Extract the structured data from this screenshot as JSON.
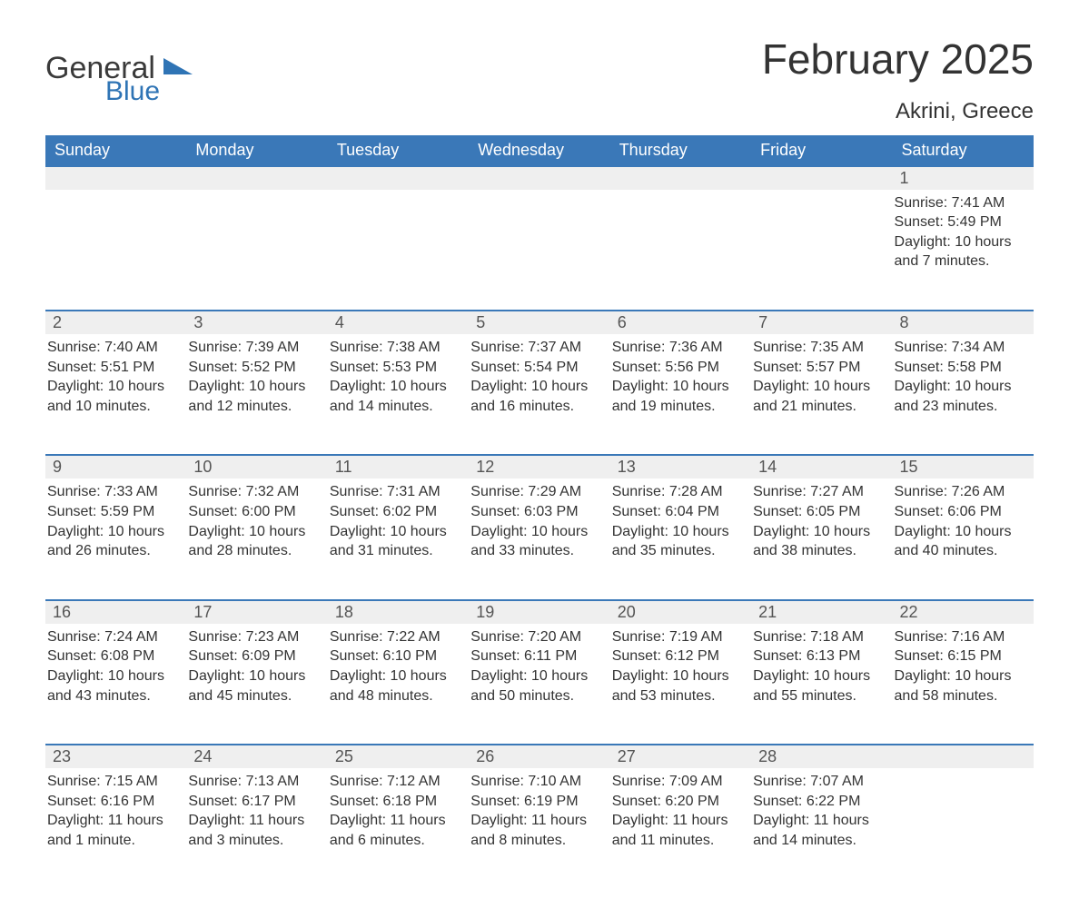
{
  "logo": {
    "text_general": "General",
    "text_blue": "Blue",
    "triangle_color": "#2f74b5"
  },
  "title": "February 2025",
  "location": "Akrini, Greece",
  "colors": {
    "header_bg": "#3a78b8",
    "header_text": "#ffffff",
    "week_border": "#3a78b8",
    "daynum_bg": "#efefef",
    "body_text": "#333333",
    "logo_text": "#3a3a3a",
    "logo_blue": "#2f74b5",
    "page_bg": "#ffffff"
  },
  "day_headers": [
    "Sunday",
    "Monday",
    "Tuesday",
    "Wednesday",
    "Thursday",
    "Friday",
    "Saturday"
  ],
  "weeks": [
    [
      null,
      null,
      null,
      null,
      null,
      null,
      {
        "n": "1",
        "sunrise": "Sunrise: 7:41 AM",
        "sunset": "Sunset: 5:49 PM",
        "daylight": "Daylight: 10 hours and 7 minutes."
      }
    ],
    [
      {
        "n": "2",
        "sunrise": "Sunrise: 7:40 AM",
        "sunset": "Sunset: 5:51 PM",
        "daylight": "Daylight: 10 hours and 10 minutes."
      },
      {
        "n": "3",
        "sunrise": "Sunrise: 7:39 AM",
        "sunset": "Sunset: 5:52 PM",
        "daylight": "Daylight: 10 hours and 12 minutes."
      },
      {
        "n": "4",
        "sunrise": "Sunrise: 7:38 AM",
        "sunset": "Sunset: 5:53 PM",
        "daylight": "Daylight: 10 hours and 14 minutes."
      },
      {
        "n": "5",
        "sunrise": "Sunrise: 7:37 AM",
        "sunset": "Sunset: 5:54 PM",
        "daylight": "Daylight: 10 hours and 16 minutes."
      },
      {
        "n": "6",
        "sunrise": "Sunrise: 7:36 AM",
        "sunset": "Sunset: 5:56 PM",
        "daylight": "Daylight: 10 hours and 19 minutes."
      },
      {
        "n": "7",
        "sunrise": "Sunrise: 7:35 AM",
        "sunset": "Sunset: 5:57 PM",
        "daylight": "Daylight: 10 hours and 21 minutes."
      },
      {
        "n": "8",
        "sunrise": "Sunrise: 7:34 AM",
        "sunset": "Sunset: 5:58 PM",
        "daylight": "Daylight: 10 hours and 23 minutes."
      }
    ],
    [
      {
        "n": "9",
        "sunrise": "Sunrise: 7:33 AM",
        "sunset": "Sunset: 5:59 PM",
        "daylight": "Daylight: 10 hours and 26 minutes."
      },
      {
        "n": "10",
        "sunrise": "Sunrise: 7:32 AM",
        "sunset": "Sunset: 6:00 PM",
        "daylight": "Daylight: 10 hours and 28 minutes."
      },
      {
        "n": "11",
        "sunrise": "Sunrise: 7:31 AM",
        "sunset": "Sunset: 6:02 PM",
        "daylight": "Daylight: 10 hours and 31 minutes."
      },
      {
        "n": "12",
        "sunrise": "Sunrise: 7:29 AM",
        "sunset": "Sunset: 6:03 PM",
        "daylight": "Daylight: 10 hours and 33 minutes."
      },
      {
        "n": "13",
        "sunrise": "Sunrise: 7:28 AM",
        "sunset": "Sunset: 6:04 PM",
        "daylight": "Daylight: 10 hours and 35 minutes."
      },
      {
        "n": "14",
        "sunrise": "Sunrise: 7:27 AM",
        "sunset": "Sunset: 6:05 PM",
        "daylight": "Daylight: 10 hours and 38 minutes."
      },
      {
        "n": "15",
        "sunrise": "Sunrise: 7:26 AM",
        "sunset": "Sunset: 6:06 PM",
        "daylight": "Daylight: 10 hours and 40 minutes."
      }
    ],
    [
      {
        "n": "16",
        "sunrise": "Sunrise: 7:24 AM",
        "sunset": "Sunset: 6:08 PM",
        "daylight": "Daylight: 10 hours and 43 minutes."
      },
      {
        "n": "17",
        "sunrise": "Sunrise: 7:23 AM",
        "sunset": "Sunset: 6:09 PM",
        "daylight": "Daylight: 10 hours and 45 minutes."
      },
      {
        "n": "18",
        "sunrise": "Sunrise: 7:22 AM",
        "sunset": "Sunset: 6:10 PM",
        "daylight": "Daylight: 10 hours and 48 minutes."
      },
      {
        "n": "19",
        "sunrise": "Sunrise: 7:20 AM",
        "sunset": "Sunset: 6:11 PM",
        "daylight": "Daylight: 10 hours and 50 minutes."
      },
      {
        "n": "20",
        "sunrise": "Sunrise: 7:19 AM",
        "sunset": "Sunset: 6:12 PM",
        "daylight": "Daylight: 10 hours and 53 minutes."
      },
      {
        "n": "21",
        "sunrise": "Sunrise: 7:18 AM",
        "sunset": "Sunset: 6:13 PM",
        "daylight": "Daylight: 10 hours and 55 minutes."
      },
      {
        "n": "22",
        "sunrise": "Sunrise: 7:16 AM",
        "sunset": "Sunset: 6:15 PM",
        "daylight": "Daylight: 10 hours and 58 minutes."
      }
    ],
    [
      {
        "n": "23",
        "sunrise": "Sunrise: 7:15 AM",
        "sunset": "Sunset: 6:16 PM",
        "daylight": "Daylight: 11 hours and 1 minute."
      },
      {
        "n": "24",
        "sunrise": "Sunrise: 7:13 AM",
        "sunset": "Sunset: 6:17 PM",
        "daylight": "Daylight: 11 hours and 3 minutes."
      },
      {
        "n": "25",
        "sunrise": "Sunrise: 7:12 AM",
        "sunset": "Sunset: 6:18 PM",
        "daylight": "Daylight: 11 hours and 6 minutes."
      },
      {
        "n": "26",
        "sunrise": "Sunrise: 7:10 AM",
        "sunset": "Sunset: 6:19 PM",
        "daylight": "Daylight: 11 hours and 8 minutes."
      },
      {
        "n": "27",
        "sunrise": "Sunrise: 7:09 AM",
        "sunset": "Sunset: 6:20 PM",
        "daylight": "Daylight: 11 hours and 11 minutes."
      },
      {
        "n": "28",
        "sunrise": "Sunrise: 7:07 AM",
        "sunset": "Sunset: 6:22 PM",
        "daylight": "Daylight: 11 hours and 14 minutes."
      },
      null
    ]
  ]
}
